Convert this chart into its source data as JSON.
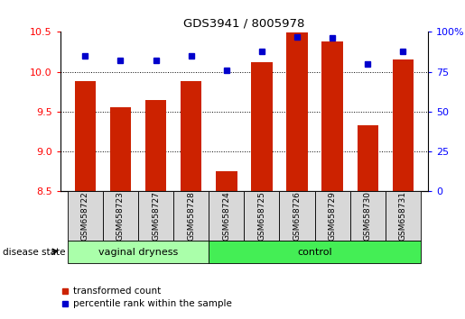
{
  "title": "GDS3941 / 8005978",
  "samples": [
    "GSM658722",
    "GSM658723",
    "GSM658727",
    "GSM658728",
    "GSM658724",
    "GSM658725",
    "GSM658726",
    "GSM658729",
    "GSM658730",
    "GSM658731"
  ],
  "red_values": [
    9.88,
    9.55,
    9.65,
    9.88,
    8.75,
    10.12,
    10.49,
    10.38,
    9.33,
    10.15
  ],
  "blue_values": [
    85,
    82,
    82,
    85,
    76,
    88,
    97,
    96,
    80,
    88
  ],
  "groups": [
    {
      "label": "vaginal dryness",
      "start": 0,
      "end": 4
    },
    {
      "label": "control",
      "start": 4,
      "end": 10
    }
  ],
  "ylim_left": [
    8.5,
    10.5
  ],
  "ylim_right": [
    0,
    100
  ],
  "yticks_left": [
    8.5,
    9.0,
    9.5,
    10.0,
    10.5
  ],
  "yticks_right": [
    0,
    25,
    50,
    75,
    100
  ],
  "ytick_labels_right": [
    "0",
    "25",
    "50",
    "75",
    "100%"
  ],
  "bar_color": "#CC2200",
  "dot_color": "#0000CC",
  "label_red": "transformed count",
  "label_blue": "percentile rank within the sample",
  "disease_state_label": "disease state",
  "group_colors": [
    "#aaffaa",
    "#44ee55"
  ]
}
